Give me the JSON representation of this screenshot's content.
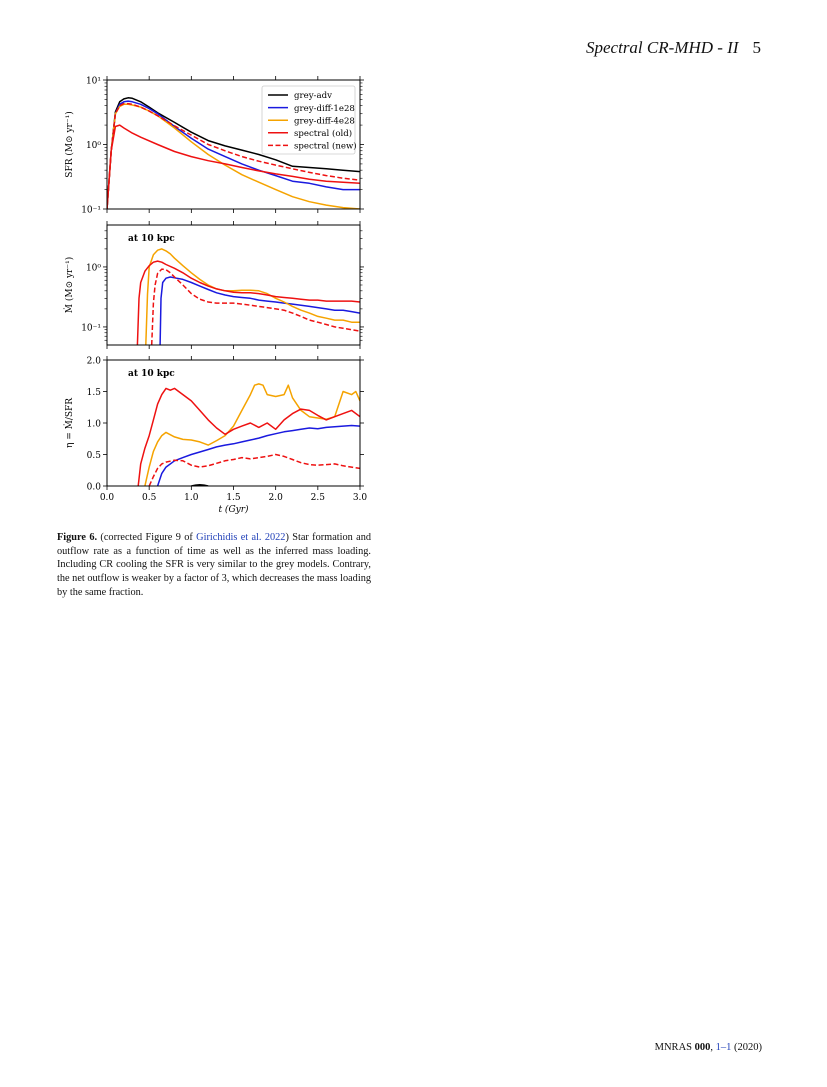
{
  "header": {
    "running_title": "Spectral CR-MHD - II",
    "page_number": "5"
  },
  "figure": {
    "number": "Figure 6.",
    "caption_prefix": " (corrected Figure 9 of ",
    "caption_ref": "Girichidis et al. 2022",
    "caption_rest": ") Star formation and outflow rate as a function of time as well as the inferred mass loading. Including CR cooling the SFR is very similar to the grey models. Contrary, the net outflow is weaker by a factor of 3, which decreases the mass loading by the same fraction."
  },
  "colors": {
    "grey-adv": "#000000",
    "grey-diff-1e28": "#1a1adf",
    "grey-diff-4e28": "#f5a300",
    "spectral": "#ee1111"
  },
  "footer": {
    "journal": "MNRAS",
    "volume": "000",
    "pages": "1–1",
    "year": "(2020)"
  },
  "chart_data": [
    {
      "type": "line",
      "ylabel": "SFR (M⊙ yr⁻¹)",
      "yscale": "log",
      "ylim": [
        0.1,
        10
      ],
      "xlim": [
        0,
        3
      ],
      "ytick_labels": [
        "10⁻¹",
        "10⁰",
        "10¹"
      ],
      "legend": {
        "position": "top-right"
      },
      "series": [
        {
          "name": "grey-adv",
          "style": "solid",
          "color": "#000000",
          "x": [
            0.0,
            0.05,
            0.1,
            0.15,
            0.2,
            0.25,
            0.3,
            0.4,
            0.5,
            0.6,
            0.8,
            1.0,
            1.2,
            1.4,
            1.6,
            1.8,
            2.0,
            2.2,
            2.4,
            2.6,
            2.8,
            3.0
          ],
          "y": [
            0.1,
            0.8,
            3.2,
            4.6,
            5.1,
            5.3,
            5.2,
            4.6,
            3.8,
            3.1,
            2.2,
            1.55,
            1.15,
            0.95,
            0.82,
            0.7,
            0.58,
            0.46,
            0.44,
            0.42,
            0.4,
            0.38
          ]
        },
        {
          "name": "grey-diff-1e28",
          "style": "solid",
          "color": "#1a1adf",
          "x": [
            0.0,
            0.05,
            0.1,
            0.15,
            0.2,
            0.25,
            0.3,
            0.4,
            0.5,
            0.6,
            0.8,
            1.0,
            1.2,
            1.4,
            1.6,
            1.8,
            2.0,
            2.2,
            2.4,
            2.6,
            2.8,
            3.0
          ],
          "y": [
            0.1,
            0.8,
            3.0,
            4.2,
            4.6,
            4.7,
            4.6,
            4.2,
            3.6,
            3.0,
            1.9,
            1.25,
            0.85,
            0.65,
            0.5,
            0.4,
            0.33,
            0.27,
            0.25,
            0.22,
            0.2,
            0.2
          ]
        },
        {
          "name": "grey-diff-4e28",
          "style": "solid",
          "color": "#f5a300",
          "x": [
            0.0,
            0.05,
            0.1,
            0.15,
            0.2,
            0.25,
            0.3,
            0.4,
            0.5,
            0.6,
            0.8,
            1.0,
            1.2,
            1.4,
            1.6,
            1.8,
            2.0,
            2.2,
            2.4,
            2.6,
            2.8,
            3.0
          ],
          "y": [
            0.1,
            0.8,
            3.0,
            3.9,
            4.2,
            4.2,
            4.1,
            3.8,
            3.3,
            2.8,
            1.8,
            1.1,
            0.7,
            0.48,
            0.34,
            0.26,
            0.2,
            0.155,
            0.13,
            0.115,
            0.105,
            0.098
          ]
        },
        {
          "name": "spectral (old)",
          "style": "solid",
          "color": "#ee1111",
          "x": [
            0.0,
            0.05,
            0.1,
            0.15,
            0.2,
            0.3,
            0.4,
            0.6,
            0.8,
            1.0,
            1.2,
            1.4,
            1.6,
            1.8,
            2.0,
            2.2,
            2.4,
            2.6,
            2.8,
            3.0
          ],
          "y": [
            0.1,
            0.8,
            1.9,
            2.0,
            1.8,
            1.5,
            1.3,
            1.0,
            0.78,
            0.65,
            0.56,
            0.5,
            0.44,
            0.39,
            0.35,
            0.32,
            0.29,
            0.27,
            0.26,
            0.25
          ]
        },
        {
          "name": "spectral (new)",
          "style": "dashed",
          "color": "#ee1111",
          "x": [
            0.0,
            0.05,
            0.1,
            0.15,
            0.2,
            0.25,
            0.3,
            0.4,
            0.5,
            0.6,
            0.8,
            1.0,
            1.2,
            1.4,
            1.6,
            1.8,
            2.0,
            2.2,
            2.4,
            2.6,
            2.8,
            3.0
          ],
          "y": [
            0.1,
            0.8,
            3.0,
            4.0,
            4.3,
            4.3,
            4.2,
            3.8,
            3.3,
            2.8,
            1.95,
            1.4,
            1.0,
            0.8,
            0.65,
            0.55,
            0.48,
            0.42,
            0.37,
            0.33,
            0.3,
            0.28
          ]
        }
      ]
    },
    {
      "type": "line",
      "annotation": "at 10 kpc",
      "ylabel": "Ṁ (M⊙ yr⁻¹)",
      "yscale": "log",
      "ylim": [
        0.05,
        5
      ],
      "xlim": [
        0,
        3
      ],
      "ytick_labels": [
        "10⁻¹",
        "10⁰"
      ],
      "series": [
        {
          "name": "grey-diff-1e28",
          "style": "solid",
          "color": "#1a1adf",
          "x": [
            0.63,
            0.64,
            0.66,
            0.7,
            0.75,
            0.8,
            0.9,
            1.0,
            1.1,
            1.2,
            1.3,
            1.4,
            1.5,
            1.6,
            1.7,
            1.8,
            1.9,
            2.0,
            2.1,
            2.2,
            2.3,
            2.4,
            2.5,
            2.6,
            2.7,
            2.8,
            2.9,
            3.0
          ],
          "y": [
            0.05,
            0.3,
            0.55,
            0.65,
            0.68,
            0.66,
            0.62,
            0.55,
            0.48,
            0.42,
            0.37,
            0.34,
            0.32,
            0.31,
            0.3,
            0.28,
            0.27,
            0.26,
            0.25,
            0.24,
            0.23,
            0.22,
            0.21,
            0.2,
            0.19,
            0.19,
            0.18,
            0.17
          ]
        },
        {
          "name": "grey-diff-4e28",
          "style": "solid",
          "color": "#f5a300",
          "x": [
            0.46,
            0.48,
            0.5,
            0.55,
            0.6,
            0.65,
            0.7,
            0.75,
            0.8,
            0.9,
            1.0,
            1.1,
            1.2,
            1.3,
            1.4,
            1.5,
            1.6,
            1.7,
            1.8,
            1.9,
            2.0,
            2.1,
            2.2,
            2.3,
            2.4,
            2.5,
            2.6,
            2.7,
            2.8,
            2.9,
            3.0
          ],
          "y": [
            0.05,
            0.35,
            1.0,
            1.6,
            1.9,
            2.0,
            1.85,
            1.65,
            1.4,
            1.05,
            0.8,
            0.62,
            0.5,
            0.43,
            0.4,
            0.4,
            0.41,
            0.41,
            0.4,
            0.36,
            0.3,
            0.26,
            0.22,
            0.19,
            0.17,
            0.15,
            0.14,
            0.13,
            0.13,
            0.12,
            0.12
          ]
        },
        {
          "name": "spectral (old)",
          "style": "solid",
          "color": "#ee1111",
          "x": [
            0.36,
            0.38,
            0.4,
            0.45,
            0.5,
            0.55,
            0.6,
            0.65,
            0.7,
            0.8,
            0.9,
            1.0,
            1.1,
            1.2,
            1.3,
            1.4,
            1.5,
            1.6,
            1.7,
            1.8,
            1.9,
            2.0,
            2.1,
            2.2,
            2.3,
            2.4,
            2.5,
            2.6,
            2.7,
            2.8,
            2.9,
            3.0
          ],
          "y": [
            0.05,
            0.3,
            0.55,
            0.85,
            1.05,
            1.2,
            1.25,
            1.2,
            1.1,
            0.95,
            0.8,
            0.65,
            0.55,
            0.48,
            0.43,
            0.4,
            0.38,
            0.37,
            0.37,
            0.36,
            0.34,
            0.32,
            0.31,
            0.3,
            0.29,
            0.28,
            0.28,
            0.27,
            0.27,
            0.27,
            0.27,
            0.26
          ]
        },
        {
          "name": "spectral (new)",
          "style": "dashed",
          "color": "#ee1111",
          "x": [
            0.53,
            0.55,
            0.57,
            0.6,
            0.65,
            0.7,
            0.75,
            0.8,
            0.9,
            1.0,
            1.1,
            1.2,
            1.3,
            1.4,
            1.5,
            1.6,
            1.7,
            1.8,
            1.9,
            2.0,
            2.1,
            2.2,
            2.3,
            2.4,
            2.5,
            2.6,
            2.7,
            2.8,
            2.9,
            3.0
          ],
          "y": [
            0.05,
            0.25,
            0.5,
            0.78,
            0.92,
            0.9,
            0.8,
            0.68,
            0.5,
            0.36,
            0.29,
            0.26,
            0.25,
            0.25,
            0.25,
            0.24,
            0.23,
            0.22,
            0.21,
            0.2,
            0.19,
            0.17,
            0.15,
            0.13,
            0.12,
            0.11,
            0.1,
            0.095,
            0.09,
            0.085
          ]
        }
      ]
    },
    {
      "type": "line",
      "annotation": "at 10 kpc",
      "ylabel": "η = Ṁ/SFR",
      "xlabel": "t (Gyr)",
      "ylim": [
        0,
        2
      ],
      "xlim": [
        0,
        3
      ],
      "ytick_labels": [
        "0.0",
        "0.5",
        "1.0",
        "1.5",
        "2.0"
      ],
      "xtick_labels": [
        "0.0",
        "0.5",
        "1.0",
        "1.5",
        "2.0",
        "2.5",
        "3.0"
      ],
      "series": [
        {
          "name": "grey-adv",
          "style": "solid",
          "color": "#000000",
          "x": [
            1.0,
            1.05,
            1.1,
            1.15,
            1.2
          ],
          "y": [
            0.0,
            0.015,
            0.02,
            0.015,
            0.0
          ]
        },
        {
          "name": "grey-diff-1e28",
          "style": "solid",
          "color": "#1a1adf",
          "x": [
            0.6,
            0.65,
            0.7,
            0.8,
            0.9,
            1.0,
            1.1,
            1.2,
            1.3,
            1.4,
            1.5,
            1.6,
            1.7,
            1.8,
            1.9,
            2.0,
            2.1,
            2.2,
            2.3,
            2.4,
            2.5,
            2.6,
            2.7,
            2.8,
            2.9,
            3.0
          ],
          "y": [
            0.0,
            0.2,
            0.3,
            0.4,
            0.45,
            0.5,
            0.54,
            0.58,
            0.62,
            0.65,
            0.67,
            0.7,
            0.73,
            0.76,
            0.8,
            0.83,
            0.86,
            0.88,
            0.9,
            0.92,
            0.91,
            0.93,
            0.94,
            0.95,
            0.96,
            0.95
          ]
        },
        {
          "name": "grey-diff-4e28",
          "style": "solid",
          "color": "#f5a300",
          "x": [
            0.45,
            0.5,
            0.55,
            0.6,
            0.65,
            0.7,
            0.8,
            0.9,
            1.0,
            1.1,
            1.2,
            1.3,
            1.4,
            1.5,
            1.6,
            1.7,
            1.75,
            1.8,
            1.85,
            1.9,
            2.0,
            2.1,
            2.15,
            2.2,
            2.3,
            2.4,
            2.5,
            2.6,
            2.7,
            2.75,
            2.8,
            2.9,
            2.95,
            3.0
          ],
          "y": [
            0.0,
            0.3,
            0.55,
            0.7,
            0.8,
            0.85,
            0.78,
            0.74,
            0.73,
            0.7,
            0.65,
            0.72,
            0.8,
            0.95,
            1.2,
            1.45,
            1.6,
            1.62,
            1.6,
            1.45,
            1.42,
            1.45,
            1.6,
            1.4,
            1.2,
            1.1,
            1.08,
            1.06,
            1.1,
            1.3,
            1.5,
            1.45,
            1.5,
            1.35
          ]
        },
        {
          "name": "spectral (old)",
          "style": "solid",
          "color": "#ee1111",
          "x": [
            0.37,
            0.4,
            0.45,
            0.5,
            0.55,
            0.6,
            0.65,
            0.7,
            0.75,
            0.8,
            0.85,
            0.9,
            1.0,
            1.1,
            1.2,
            1.3,
            1.4,
            1.5,
            1.6,
            1.7,
            1.8,
            1.9,
            2.0,
            2.1,
            2.2,
            2.3,
            2.4,
            2.5,
            2.6,
            2.7,
            2.8,
            2.9,
            3.0
          ],
          "y": [
            0.0,
            0.35,
            0.6,
            0.8,
            1.05,
            1.3,
            1.45,
            1.55,
            1.52,
            1.55,
            1.5,
            1.45,
            1.35,
            1.2,
            1.05,
            0.92,
            0.82,
            0.9,
            0.95,
            1.0,
            0.93,
            1.0,
            0.9,
            1.05,
            1.15,
            1.22,
            1.2,
            1.12,
            1.05,
            1.1,
            1.15,
            1.2,
            1.1
          ]
        },
        {
          "name": "spectral (new)",
          "style": "dashed",
          "color": "#ee1111",
          "x": [
            0.5,
            0.55,
            0.6,
            0.65,
            0.7,
            0.8,
            0.9,
            1.0,
            1.1,
            1.2,
            1.3,
            1.4,
            1.5,
            1.6,
            1.7,
            1.8,
            1.9,
            2.0,
            2.1,
            2.2,
            2.3,
            2.4,
            2.5,
            2.6,
            2.7,
            2.8,
            2.9,
            3.0
          ],
          "y": [
            0.0,
            0.15,
            0.28,
            0.35,
            0.38,
            0.41,
            0.4,
            0.33,
            0.3,
            0.32,
            0.36,
            0.4,
            0.42,
            0.45,
            0.43,
            0.45,
            0.47,
            0.5,
            0.47,
            0.42,
            0.37,
            0.34,
            0.33,
            0.34,
            0.35,
            0.32,
            0.3,
            0.28
          ]
        }
      ]
    }
  ]
}
